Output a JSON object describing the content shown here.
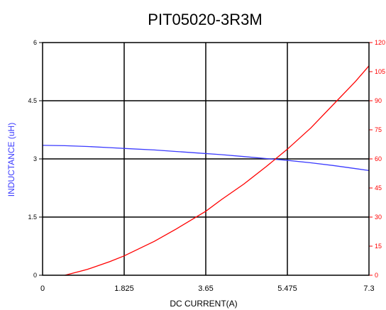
{
  "chart_data": {
    "type": "line",
    "title": "PIT05020-3R3M",
    "xlabel": "DC CURRENT(A)",
    "ylabel_left": "INDUCTANCE (uH)",
    "ylabel_right": "",
    "xlim": [
      0,
      7.3
    ],
    "ylim_left": [
      0,
      6
    ],
    "ylim_right": [
      0,
      120
    ],
    "x_ticks": [
      "0",
      "1.825",
      "3.65",
      "5.475",
      "7.3"
    ],
    "y_ticks_left": [
      "0",
      "1.5",
      "3",
      "4.5",
      "6"
    ],
    "y_ticks_right": [
      "0",
      "15",
      "30",
      "45",
      "60",
      "75",
      "90",
      "105",
      "120"
    ],
    "grid": true,
    "colors": {
      "inductance": "#3b3bff",
      "right_axis": "#ff0000",
      "grid": "#000000"
    },
    "series": [
      {
        "axis": "left",
        "color": "#3b3bff",
        "x": [
          0,
          0.5,
          1.0,
          1.5,
          2.0,
          2.5,
          3.0,
          3.5,
          4.0,
          4.5,
          5.0,
          5.5,
          6.0,
          6.5,
          7.0,
          7.3
        ],
        "y": [
          3.35,
          3.34,
          3.32,
          3.29,
          3.26,
          3.23,
          3.19,
          3.15,
          3.11,
          3.06,
          3.01,
          2.96,
          2.9,
          2.83,
          2.75,
          2.7
        ]
      },
      {
        "axis": "right",
        "color": "#ff0000",
        "x": [
          0.5,
          1.0,
          1.5,
          1.825,
          2.5,
          3.0,
          3.65,
          4.0,
          4.5,
          5.0,
          5.475,
          6.0,
          6.5,
          7.0,
          7.3
        ],
        "y": [
          0,
          3,
          7,
          10,
          17.5,
          24,
          33,
          39,
          47,
          56,
          65,
          76,
          88,
          100,
          108
        ]
      }
    ]
  }
}
